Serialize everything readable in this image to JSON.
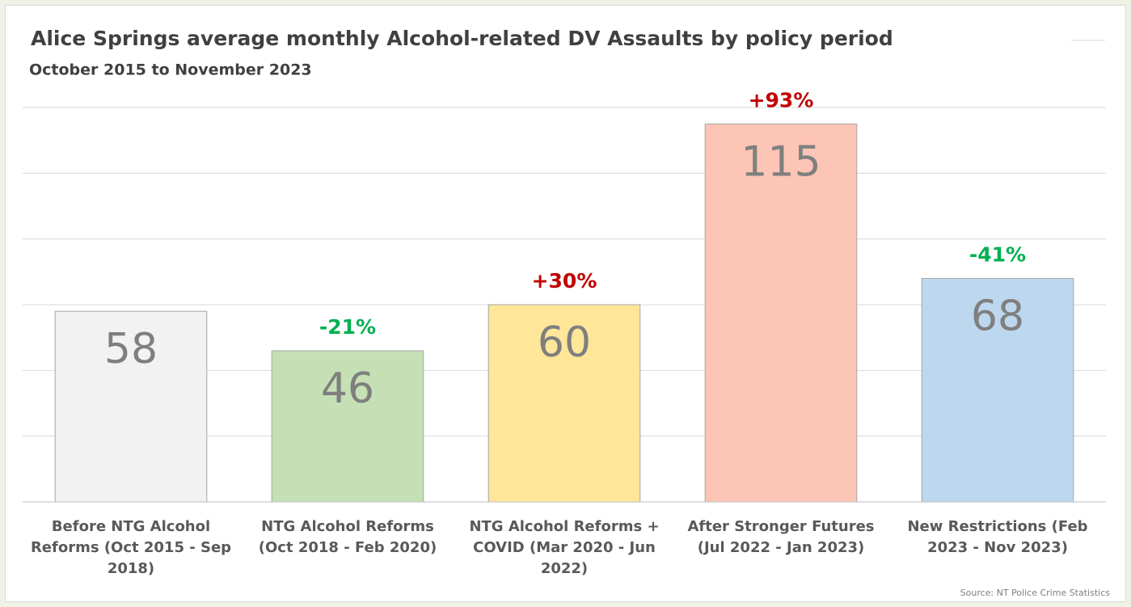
{
  "chart_data": {
    "type": "bar",
    "title": "Alice Springs average monthly Alcohol-related DV Assaults by policy period",
    "subtitle": "October 2015 to November 2023",
    "categories": [
      "Before NTG Alcohol Reforms (Oct 2015 - Sep 2018)",
      "NTG Alcohol Reforms (Oct 2018 - Feb 2020)",
      "NTG Alcohol Reforms + COVID (Mar 2020 - Jun 2022)",
      "After Stronger Futures (Jul 2022 - Jan 2023)",
      "New Restrictions (Feb 2023 - Nov 2023)"
    ],
    "values": [
      58,
      46,
      60,
      115,
      68
    ],
    "colors": [
      "#f2f2f2",
      "#c5e0b4",
      "#ffe699",
      "#fcc5b5",
      "#bdd7ee"
    ],
    "changes": [
      null,
      "-21%",
      "+30%",
      "+93%",
      "-41%"
    ],
    "change_colors": [
      null,
      "#00b050",
      "#c00000",
      "#c00000",
      "#00b050"
    ],
    "ylim": [
      0,
      120
    ],
    "yticks": [
      0,
      20,
      40,
      60,
      80,
      100,
      120
    ],
    "grid": true,
    "source": "Source: NT Police Crime Statistics"
  }
}
